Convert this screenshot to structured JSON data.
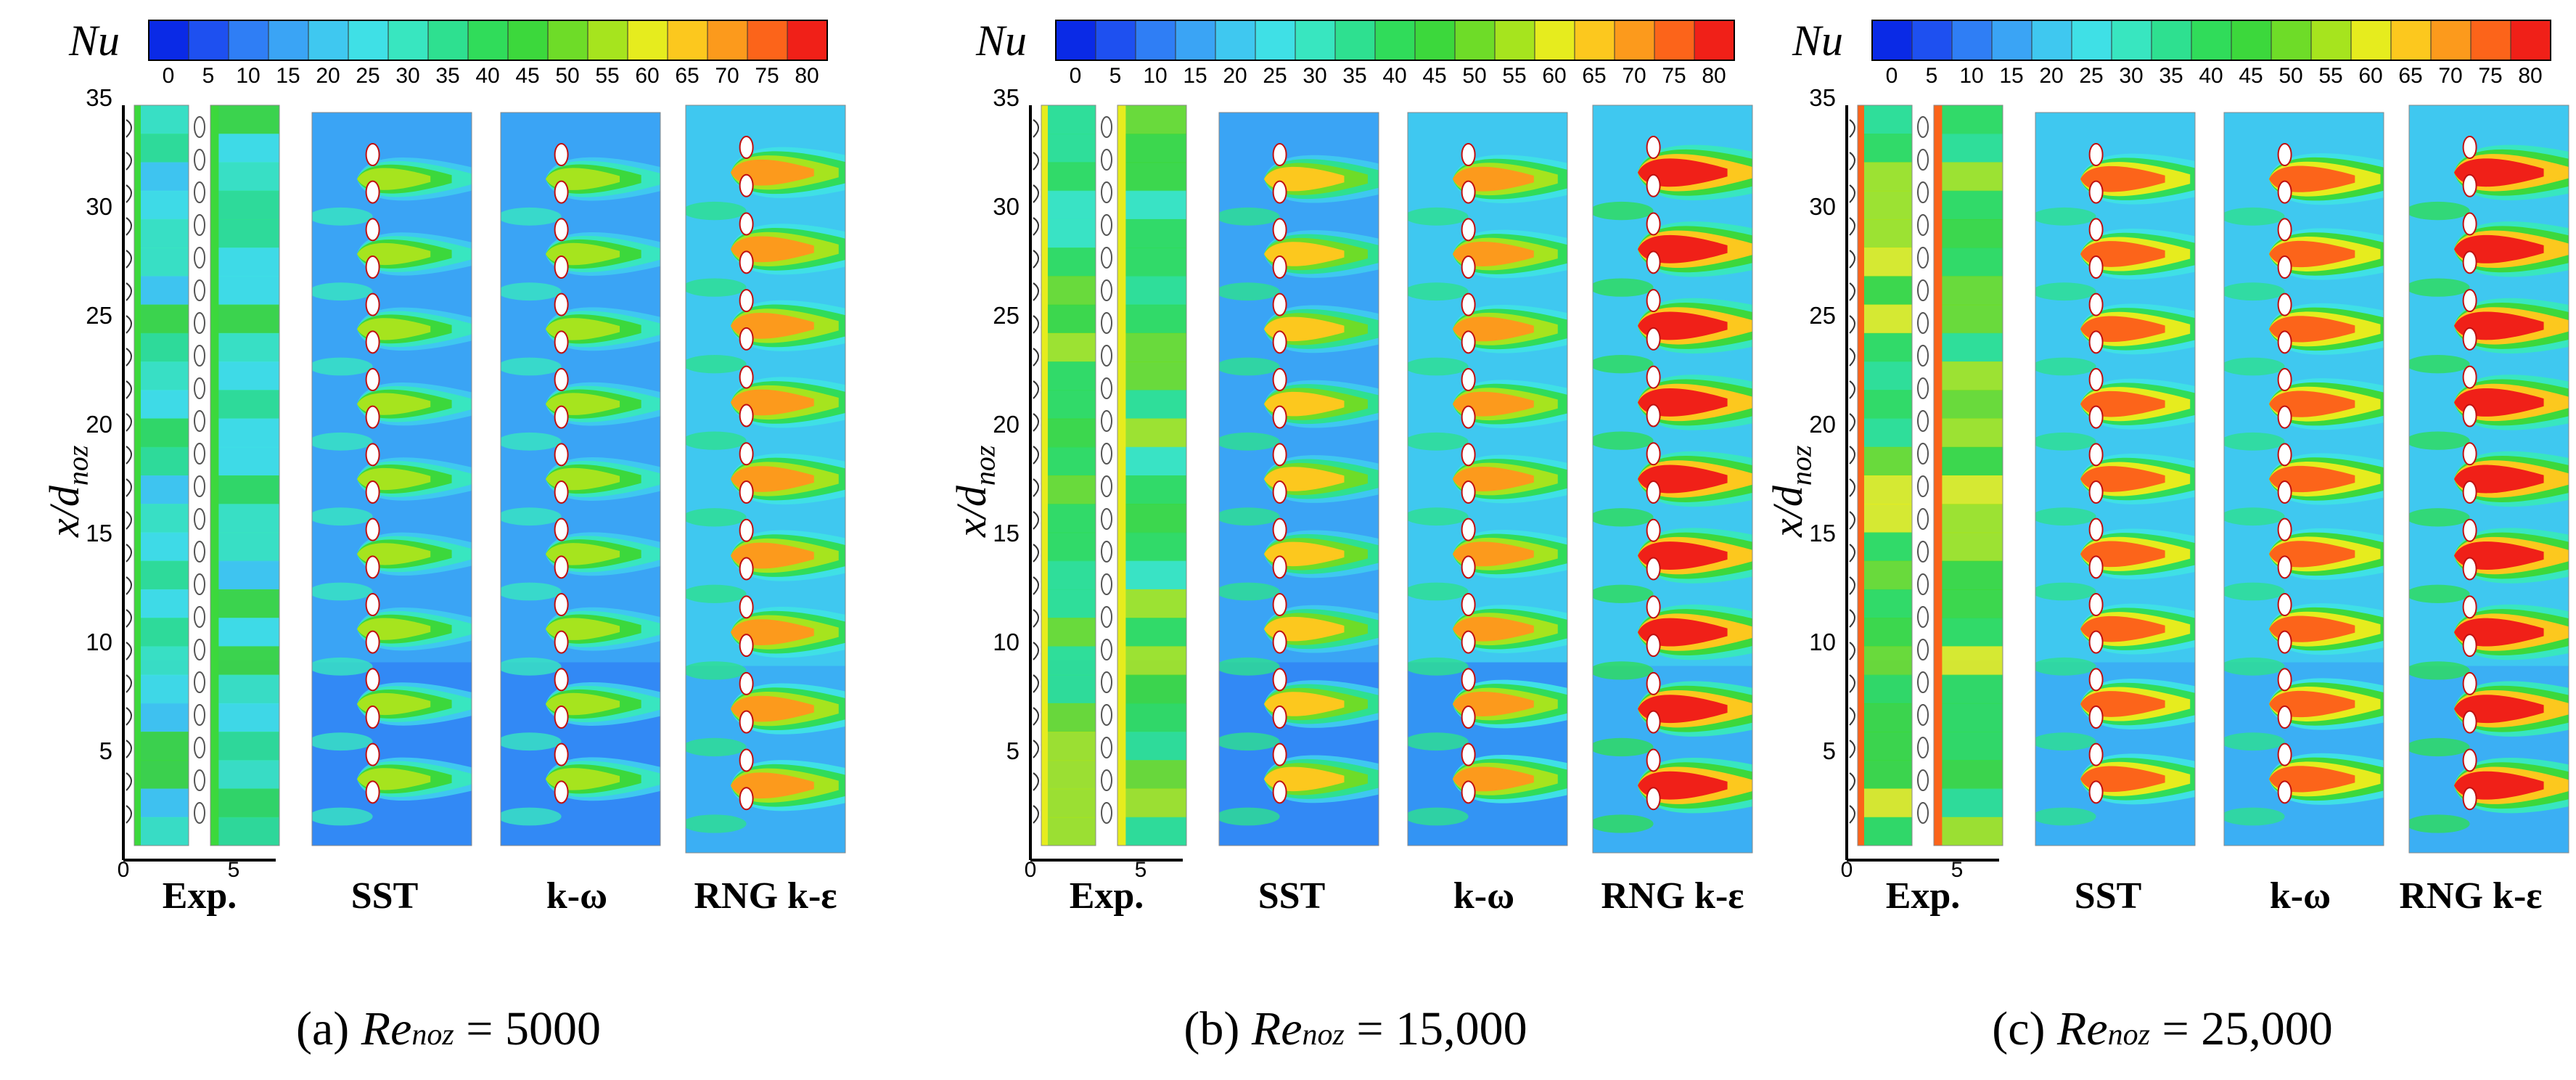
{
  "colorbar": {
    "label": "Nu",
    "ticks": [
      "0",
      "5",
      "10",
      "15",
      "20",
      "25",
      "30",
      "35",
      "40",
      "45",
      "50",
      "55",
      "60",
      "65",
      "70",
      "75",
      "80"
    ],
    "colors": [
      "#0a2ae6",
      "#1e50f0",
      "#2f7ef5",
      "#3aa4f5",
      "#3fc8f0",
      "#3fe0e6",
      "#38e6c0",
      "#2ee090",
      "#30dc5a",
      "#3cd83c",
      "#6edc28",
      "#a6e41e",
      "#e6ec1e",
      "#fcc81e",
      "#fc9a1c",
      "#fc641a",
      "#f02018"
    ]
  },
  "y_axis": {
    "title": "x/d",
    "title_sub": "noz",
    "ticks": [
      "5",
      "10",
      "15",
      "20",
      "25",
      "30",
      "35"
    ]
  },
  "x_axis": {
    "ticks": [
      "0",
      "5"
    ]
  },
  "methods": [
    "Exp.",
    "SST",
    "k-ω",
    "RNG k-ε"
  ],
  "panels": [
    {
      "letter": "(a)",
      "re_label": "Re",
      "re_sub": "noz",
      "equals": "=",
      "re_value": "5000",
      "intensity": 0.45
    },
    {
      "letter": "(b)",
      "re_label": "Re",
      "re_sub": "noz",
      "equals": "=",
      "re_value": "15,000",
      "intensity": 0.75
    },
    {
      "letter": "(c)",
      "re_label": "Re",
      "re_sub": "noz",
      "equals": "=",
      "re_value": "25,000",
      "intensity": 0.95
    }
  ],
  "style": {
    "background": "#ffffff",
    "nozzle_color": "#ffffff",
    "hot_color": "#f01818"
  }
}
